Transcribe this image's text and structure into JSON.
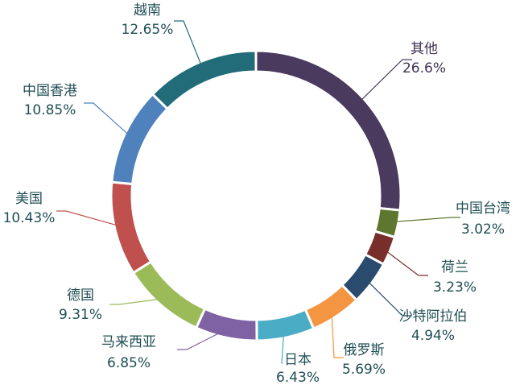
{
  "chart_data": {
    "type": "pie",
    "title": "",
    "legend": "none",
    "categories": [
      "其他",
      "中国台湾",
      "荷兰",
      "沙特阿拉伯",
      "俄罗斯",
      "日本",
      "马来西亚",
      "德国",
      "美国",
      "中国香港",
      "越南"
    ],
    "values": [
      26.6,
      3.02,
      3.23,
      4.94,
      5.69,
      6.43,
      6.85,
      9.31,
      10.43,
      10.85,
      12.65
    ],
    "labels": [
      "26.6%",
      "3.02%",
      "3.23%",
      "4.94%",
      "5.69%",
      "6.43%",
      "6.85%",
      "9.31%",
      "10.43%",
      "10.85%",
      "12.65%"
    ],
    "colors": [
      "#4a3a5e",
      "#5d7730",
      "#782e2b",
      "#2a4a6e",
      "#f39541",
      "#4aacc5",
      "#7f62a3",
      "#9bbb59",
      "#c0504d",
      "#4f81bd",
      "#226c7a"
    ],
    "label_text_colors": [
      "#3f3252",
      "#1f4e54",
      "#1f4e54",
      "#1f4e54",
      "#1f4e54",
      "#1f4e54",
      "#1f4e54",
      "#1f4e54",
      "#1f4e54",
      "#1f4e54",
      "#1f4e54"
    ]
  }
}
